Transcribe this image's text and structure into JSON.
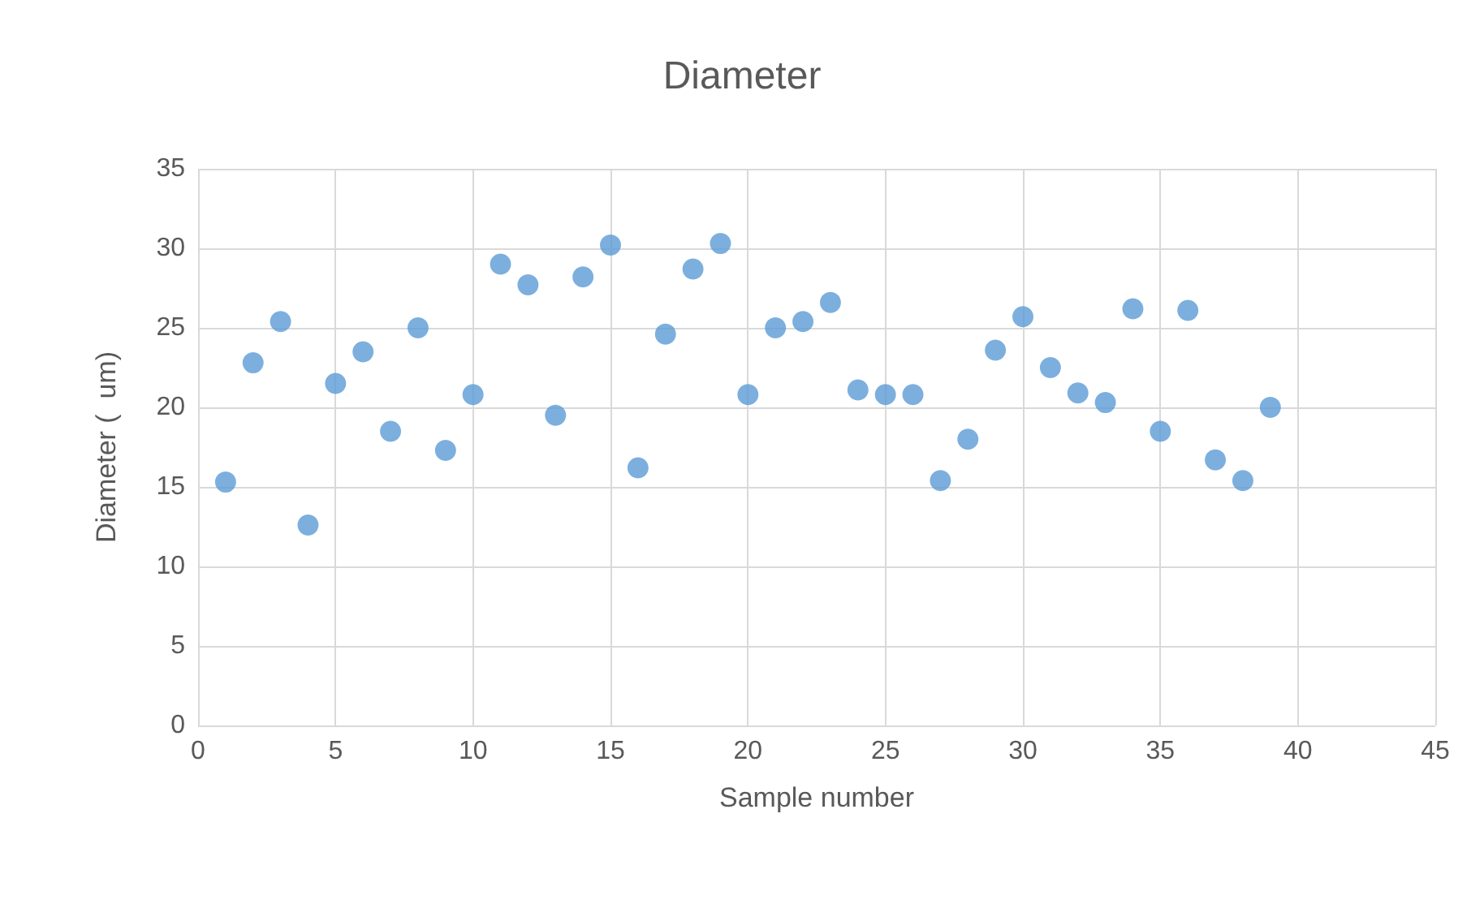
{
  "chart_data": {
    "type": "scatter",
    "title": "Diameter",
    "xlabel": "Sample number",
    "ylabel": "Diameter (  um)",
    "x": [
      1,
      2,
      3,
      4,
      5,
      6,
      7,
      8,
      9,
      10,
      11,
      12,
      13,
      14,
      15,
      16,
      17,
      18,
      19,
      20,
      21,
      22,
      23,
      24,
      25,
      26,
      27,
      28,
      29,
      30,
      31,
      32,
      33,
      34,
      35,
      36,
      37,
      38,
      39
    ],
    "series": [
      {
        "color": "#5b9bd5",
        "values": [
          15.3,
          22.8,
          25.4,
          12.6,
          21.5,
          23.5,
          18.5,
          25.0,
          17.3,
          20.8,
          29.0,
          27.7,
          19.5,
          28.2,
          30.2,
          16.2,
          24.6,
          28.7,
          30.3,
          20.8,
          25.0,
          25.4,
          26.6,
          21.1,
          20.8,
          20.8,
          15.4,
          18.0,
          23.6,
          25.7,
          22.5,
          20.9,
          20.3,
          26.2,
          18.5,
          26.1,
          16.7,
          15.4,
          20.0
        ]
      }
    ],
    "xlim": [
      0,
      45
    ],
    "xticks": [
      0,
      5,
      10,
      15,
      20,
      25,
      30,
      35,
      40,
      45
    ],
    "ylim": [
      0,
      35
    ],
    "yticks": [
      0,
      5,
      10,
      15,
      20,
      25,
      30,
      35
    ],
    "grid": true,
    "marker": "circle"
  }
}
